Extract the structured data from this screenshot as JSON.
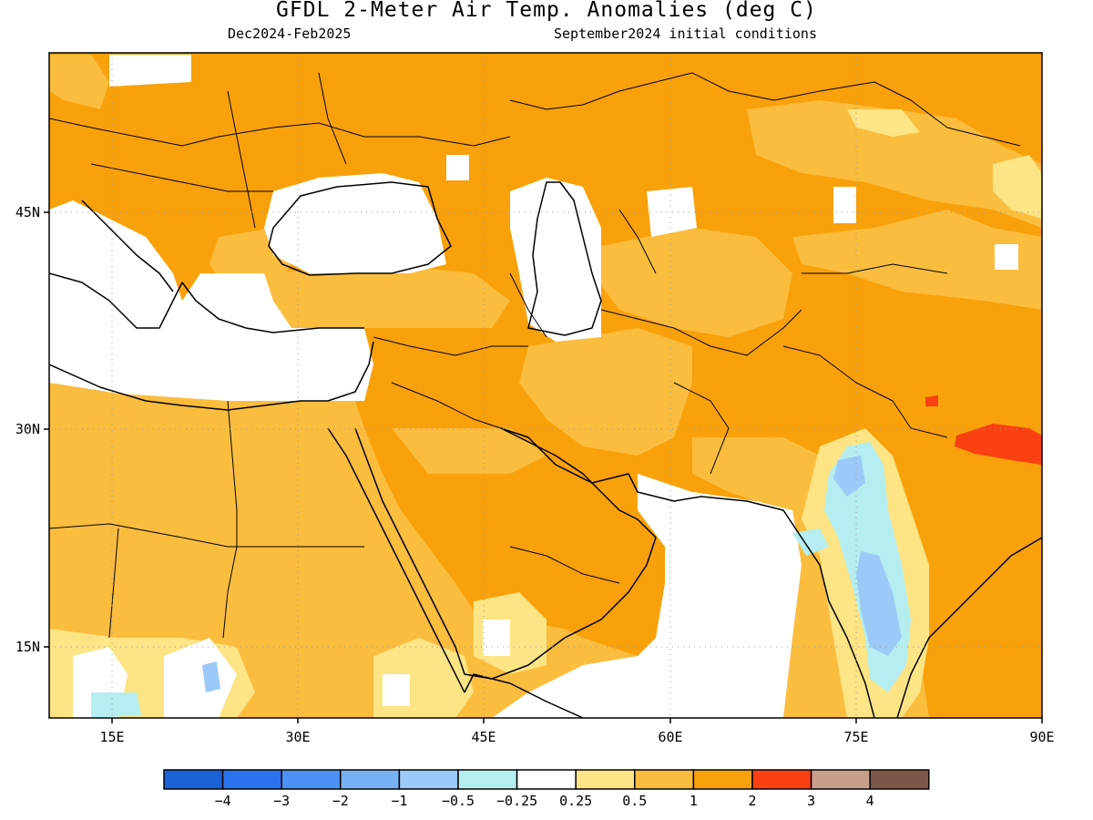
{
  "header": {
    "title": "GFDL 2-Meter Air Temp. Anomalies (deg C)",
    "period": "Dec2024-Feb2025",
    "init": "September2024 initial conditions"
  },
  "map": {
    "lon_range": [
      10,
      90
    ],
    "lat_range": [
      10,
      56
    ],
    "lon_ticks": [
      {
        "value": 15,
        "label": "15E"
      },
      {
        "value": 30,
        "label": "30E"
      },
      {
        "value": 45,
        "label": "45E"
      },
      {
        "value": 60,
        "label": "60E"
      },
      {
        "value": 75,
        "label": "75E"
      },
      {
        "value": 90,
        "label": "90E"
      }
    ],
    "lat_ticks": [
      {
        "value": 45,
        "label": "45N"
      },
      {
        "value": 30,
        "label": "30N"
      },
      {
        "value": 15,
        "label": "15N"
      }
    ]
  },
  "colorbar": {
    "colors": [
      "#1a62d6",
      "#2a72ee",
      "#4a92f4",
      "#78b0f4",
      "#9ccaf8",
      "#b4eef0",
      "#ffffff",
      "#fde484",
      "#fbbd3e",
      "#f9a10a",
      "#fa4010",
      "#c8a08a",
      "#7c5646"
    ],
    "labels": [
      "−4",
      "−3",
      "−2",
      "−1",
      "−0.5",
      "−0.25",
      "0.25",
      "0.5",
      "1",
      "2",
      "3",
      "4"
    ]
  }
}
